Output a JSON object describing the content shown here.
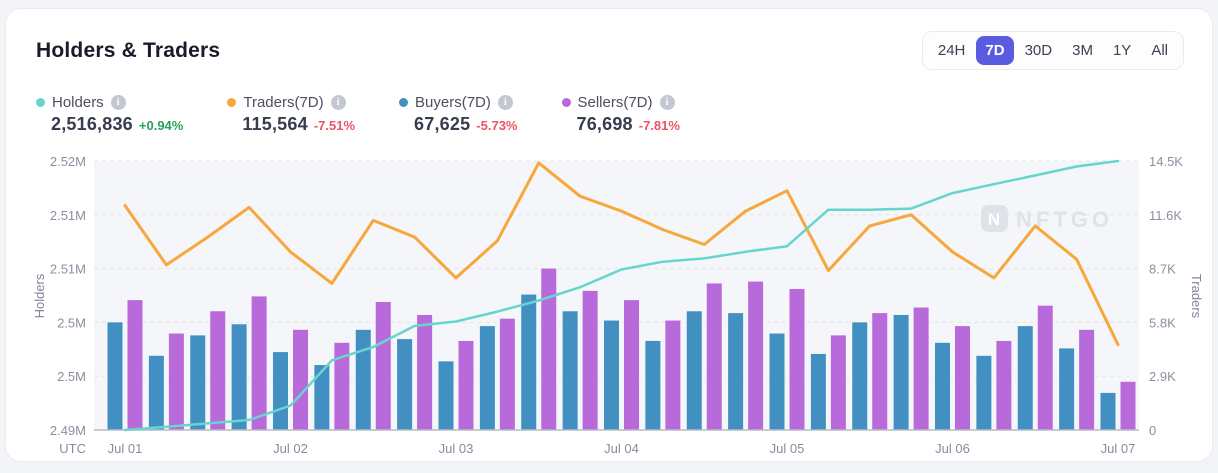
{
  "card": {
    "title": "Holders & Traders"
  },
  "time_range": {
    "options": [
      "24H",
      "7D",
      "30D",
      "3M",
      "1Y",
      "All"
    ],
    "selected": "7D",
    "active_color": "#5a5be0"
  },
  "legend": [
    {
      "name": "Holders",
      "value": "2,516,836",
      "change": "+0.94%",
      "direction": "up",
      "color": "#67d5cd"
    },
    {
      "name": "Traders(7D)",
      "value": "115,564",
      "change": "-7.51%",
      "direction": "down",
      "color": "#f7a73c"
    },
    {
      "name": "Buyers(7D)",
      "value": "67,625",
      "change": "-5.73%",
      "direction": "down",
      "color": "#4190c1"
    },
    {
      "name": "Sellers(7D)",
      "value": "76,698",
      "change": "-7.81%",
      "direction": "down",
      "color": "#b869da"
    }
  ],
  "watermark": {
    "text": "NFTGO",
    "color": "#dfe2e8"
  },
  "chart_data": {
    "type": "combo-bar-line",
    "grid": true,
    "utc_label": "UTC",
    "x_labels": [
      "Jul 01",
      "Jul 02",
      "Jul 03",
      "Jul 04",
      "Jul 05",
      "Jul 06",
      "Jul 07"
    ],
    "x_label_point_indices": [
      0,
      4,
      8,
      12,
      16,
      20,
      24
    ],
    "left_axis": {
      "title": "Holders",
      "ticks_bottom_to_top": [
        "2.49M",
        "2.5M",
        "2.5M",
        "2.51M",
        "2.51M",
        "2.52M"
      ],
      "min": 2.4925,
      "max": 2.5168
    },
    "right_axis": {
      "title": "Traders",
      "ticks_bottom_to_top": [
        "0",
        "2.9K",
        "5.8K",
        "8.7K",
        "11.6K",
        "14.5K"
      ],
      "min": 0,
      "max": 14500
    },
    "series": [
      {
        "name": "Holders",
        "type": "line",
        "axis": "left",
        "color": "#67d5cd",
        "unit": "M",
        "values": [
          2.4925,
          2.4928,
          2.4931,
          2.4934,
          2.4947,
          2.4988,
          2.5,
          2.5019,
          2.5023,
          2.5032,
          2.5042,
          2.5054,
          2.507,
          2.5077,
          2.508,
          2.5086,
          2.5091,
          2.5124,
          2.5124,
          2.5125,
          2.5139,
          2.5147,
          2.5155,
          2.5163,
          2.5168
        ]
      },
      {
        "name": "Traders(7D)",
        "type": "line",
        "axis": "right",
        "color": "#f7a73c",
        "values": [
          12100,
          8900,
          10400,
          12000,
          9600,
          7900,
          11300,
          10400,
          8200,
          10200,
          14400,
          12600,
          11800,
          10800,
          10000,
          11800,
          12900,
          8600,
          11000,
          11600,
          9600,
          8200,
          11000,
          9200,
          4600
        ]
      },
      {
        "name": "Buyers(7D)",
        "type": "bar",
        "axis": "right",
        "color": "#4190c1",
        "values": [
          5800,
          4000,
          5100,
          5700,
          4200,
          3500,
          5400,
          4900,
          3700,
          5600,
          7300,
          6400,
          5900,
          4800,
          6400,
          6300,
          5200,
          4100,
          5800,
          6200,
          4700,
          4000,
          5600,
          4400,
          2000
        ]
      },
      {
        "name": "Sellers(7D)",
        "type": "bar",
        "axis": "right",
        "color": "#b869da",
        "values": [
          7000,
          5200,
          6400,
          7200,
          5400,
          4700,
          6900,
          6200,
          4800,
          6000,
          8700,
          7500,
          7000,
          5900,
          7900,
          8000,
          7600,
          5100,
          6300,
          6600,
          5600,
          4800,
          6700,
          5400,
          2600
        ]
      }
    ]
  }
}
